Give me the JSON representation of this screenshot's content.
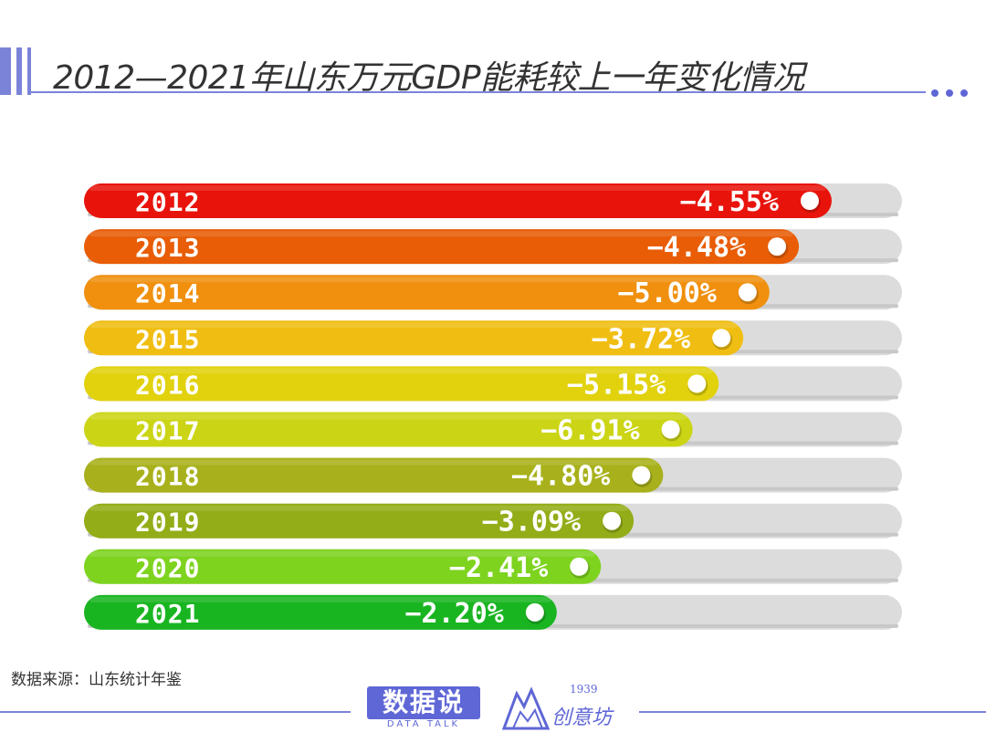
{
  "title": "2012—2021年山东万元GDP能耗较上一年变化情况",
  "source": "数据来源：山东统计年鉴",
  "logos": {
    "main": "数据说",
    "sub": "DATA TALK",
    "second_year": "1939",
    "second_name": "创意坊"
  },
  "colors": {
    "accent": "#7b83d9",
    "track": "#dcdcdc"
  },
  "chart_data": {
    "type": "bar",
    "orientation": "horizontal",
    "title": "2012—2021年山东万元GDP能耗较上一年变化情况",
    "categories": [
      "2012",
      "2013",
      "2014",
      "2015",
      "2016",
      "2017",
      "2018",
      "2019",
      "2020",
      "2021"
    ],
    "values": [
      -4.55,
      -4.48,
      -5.0,
      -3.72,
      -5.15,
      -6.91,
      -4.8,
      -3.09,
      -2.41,
      -2.2
    ],
    "value_labels": [
      "−4.55%",
      "−4.48%",
      "−5.00%",
      "−3.72%",
      "−5.15%",
      "−6.91%",
      "−4.80%",
      "−3.09%",
      "−2.41%",
      "−2.20%"
    ],
    "fill_fraction": [
      0.914,
      0.874,
      0.838,
      0.806,
      0.776,
      0.744,
      0.708,
      0.672,
      0.632,
      0.578
    ],
    "bar_colors": [
      "#e8140c",
      "#e85d06",
      "#f0900e",
      "#f0be12",
      "#e1d20d",
      "#ccd515",
      "#a8b11b",
      "#93ad18",
      "#7ed31f",
      "#19b521"
    ],
    "unit": "%",
    "xlabel": "",
    "ylabel": ""
  }
}
